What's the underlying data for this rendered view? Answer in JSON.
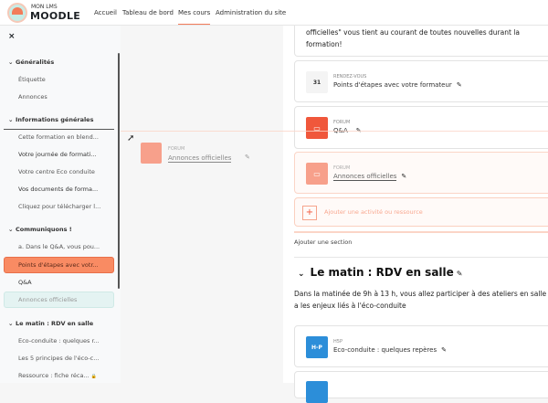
{
  "header": {
    "logo_top": "MON LMS",
    "logo_bottom": "MOODLE",
    "nav": [
      "Accueil",
      "Tableau de bord",
      "Mes cours",
      "Administration du site"
    ],
    "active_nav": "Mes cours"
  },
  "sidebar": {
    "close": "×",
    "sections": [
      {
        "title": "Généralités",
        "items": [
          "Étiquette",
          "Annonces"
        ]
      },
      {
        "title": "Informations générales",
        "items": [
          "Cette formation en blend...",
          "Votre journée de formati...",
          "Votre centre Eco conduite",
          "Vos documents de forma...",
          "Cliquez pour télécharger l..."
        ]
      },
      {
        "title": "Communiquons !",
        "items": [
          "a. Dans le Q&A, vous pou...",
          "Points d'étapes avec votr...",
          "Q&A",
          "Annonces officielles"
        ]
      },
      {
        "title": "Le matin : RDV en salle",
        "items": [
          "Eco-conduite : quelques r...",
          "Les 5 principes de l'éco-c...",
          "Ressource : fiche réca..."
        ]
      }
    ],
    "highlight_color": "#f98b63"
  },
  "drag_ghost": {
    "type": "FORUM",
    "name": "Annonces officielles"
  },
  "main": {
    "intro": "officielles\" vous tient au courant de toutes nouvelles durant la formation!",
    "activities": [
      {
        "type": "RENDEZ-VOUS",
        "name": "Points d'étapes avec votre formateur",
        "icon": "calendar-icon",
        "icon_text": "31"
      },
      {
        "type": "FORUM",
        "name": "Q&A",
        "icon": "forum-icon"
      },
      {
        "type": "FORUM",
        "name": "Annonces officielles",
        "icon": "forum-icon"
      }
    ],
    "add_activity": "Ajouter une activité ou ressource",
    "add_section": "Ajouter une section",
    "section2": {
      "title": "Le matin : RDV en salle",
      "description": "Dans la matinée de 9h à 13 h, vous allez participer à des ateliers en salle a les enjeux liés à l'éco-conduite",
      "activity": {
        "type": "H5P",
        "name": "Eco-conduite : quelques repères",
        "icon_text": "H-P"
      }
    }
  }
}
